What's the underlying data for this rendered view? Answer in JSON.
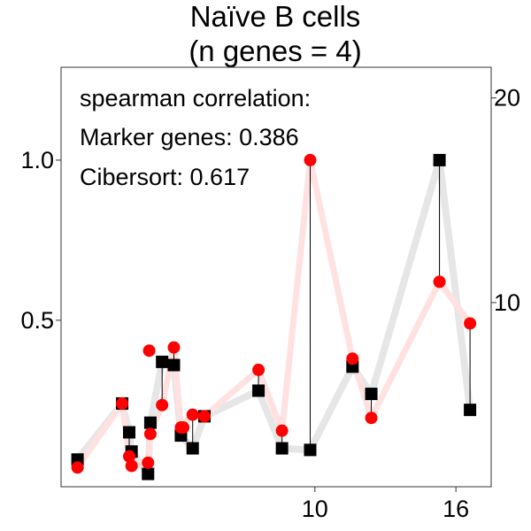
{
  "chart_data": {
    "type": "line",
    "title": "Naïve B cells",
    "subtitle": "(n genes = 4)",
    "xlabel": "",
    "ylabel": "",
    "y2label": "",
    "xlim": [
      -0.8,
      17.5
    ],
    "ylim": [
      -0.02,
      1.29
    ],
    "y2lim": [
      1.0,
      21.5
    ],
    "x_ticks": [
      10,
      16
    ],
    "y_ticks": [
      0.5,
      1.0
    ],
    "y_tick_labels": [
      "0.5",
      "1.0"
    ],
    "y2_ticks": [
      10,
      20
    ],
    "grid": false,
    "annotations": [
      "spearman correlation:",
      "Marker genes: 0.386",
      "Cibersort: 0.617"
    ],
    "colors": {
      "marker_points": "#000000",
      "marker_line": "#e6e6e6",
      "cibersort_points": "#ff0000",
      "cibersort_line": "#ffe1e1",
      "connector": "#000000"
    },
    "series": [
      {
        "type": "line",
        "x": [
          -0.1,
          1.8,
          2.1,
          2.2,
          2.9,
          3.0,
          3.5,
          4.0,
          4.3,
          4.8,
          5.3,
          7.6,
          8.6,
          9.8,
          11.6,
          12.4,
          15.3,
          16.6
        ],
        "y": [
          0.065,
          0.24,
          0.15,
          0.09,
          0.02,
          0.18,
          0.37,
          0.36,
          0.14,
          0.1,
          0.2,
          0.28,
          0.1,
          0.095,
          0.355,
          0.27,
          1.0,
          0.22
        ]
      },
      {
        "type": "line",
        "x": [
          -0.1,
          1.8,
          2.1,
          2.2,
          2.9,
          3.0,
          3.5,
          4.0,
          4.3,
          4.8,
          5.3,
          7.6,
          8.6,
          9.8,
          11.6,
          12.4,
          15.3,
          16.6
        ],
        "y": [
          0.04,
          0.24,
          0.075,
          0.045,
          0.055,
          0.145,
          0.235,
          0.415,
          0.165,
          0.205,
          0.2,
          0.345,
          0.155,
          1.0,
          0.38,
          0.195,
          0.62,
          0.49
        ]
      }
    ],
    "extra_points_cibersort": [
      {
        "x": 2.95,
        "y": 0.405
      },
      {
        "x": 4.4,
        "y": 0.165
      }
    ]
  }
}
